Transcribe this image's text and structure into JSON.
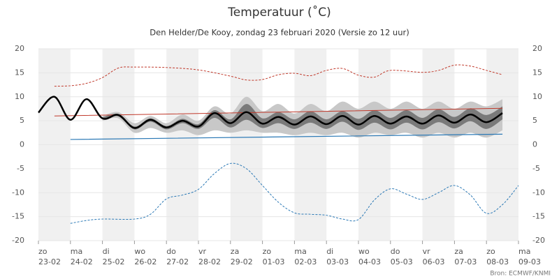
{
  "chart_data": {
    "type": "plume",
    "title": "Temperatuur (˚C)",
    "subtitle": "Den Helder/De Kooy, zondag 23 februari 2020 (Versie zo 12 uur)",
    "source": "Bron: ECMWF/KNMI",
    "xlim": [
      0,
      15
    ],
    "xticks": [
      {
        "value": 0,
        "label": "zo",
        "date": "23-02"
      },
      {
        "value": 1,
        "label": "ma",
        "date": "24-02"
      },
      {
        "value": 2,
        "label": "di",
        "date": "25-02"
      },
      {
        "value": 3,
        "label": "wo",
        "date": "26-02"
      },
      {
        "value": 4,
        "label": "do",
        "date": "27-02"
      },
      {
        "value": 5,
        "label": "vr",
        "date": "28-02"
      },
      {
        "value": 6,
        "label": "za",
        "date": "29-02"
      },
      {
        "value": 7,
        "label": "zo",
        "date": "01-03"
      },
      {
        "value": 8,
        "label": "ma",
        "date": "02-03"
      },
      {
        "value": 9,
        "label": "di",
        "date": "03-03"
      },
      {
        "value": 10,
        "label": "wo",
        "date": "04-03"
      },
      {
        "value": 11,
        "label": "do",
        "date": "05-03"
      },
      {
        "value": 12,
        "label": "vr",
        "date": "06-03"
      },
      {
        "value": 13,
        "label": "za",
        "date": "07-03"
      },
      {
        "value": 14,
        "label": "zo",
        "date": "08-03"
      },
      {
        "value": 15,
        "label": "ma",
        "date": "09-03"
      }
    ],
    "ylim": [
      -20,
      20
    ],
    "yticks": [
      -20,
      -15,
      -10,
      -5,
      0,
      5,
      10,
      15,
      20
    ],
    "grid": true,
    "day_shading": "#f0f0f0",
    "bands": [
      {
        "color": "#c8c8c8",
        "x": [
          2,
          2.5,
          3,
          3.5,
          4,
          4.5,
          5,
          5.5,
          6,
          6.5,
          7,
          7.5,
          8,
          8.5,
          9,
          9.5,
          10,
          10.5,
          11,
          11.5,
          12,
          12.5,
          13,
          13.5,
          14,
          14.5
        ],
        "high": [
          6.0,
          6.8,
          4.5,
          6.0,
          4.5,
          6.3,
          5.0,
          8.0,
          6.5,
          10.0,
          7.0,
          8.5,
          6.5,
          8.5,
          7.0,
          9.0,
          7.5,
          9.0,
          7.5,
          9.0,
          7.5,
          9.0,
          7.5,
          9.0,
          8.0,
          9.5
        ],
        "low": [
          5.0,
          5.5,
          2.5,
          3.5,
          2.5,
          3.0,
          2.0,
          3.0,
          2.5,
          3.0,
          2.5,
          2.5,
          2.0,
          2.5,
          2.0,
          2.5,
          1.5,
          2.5,
          2.0,
          2.5,
          1.5,
          2.5,
          1.5,
          2.5,
          1.5,
          3.0
        ]
      },
      {
        "color": "#7a7a7a",
        "x": [
          2,
          2.5,
          3,
          3.5,
          4,
          4.5,
          5,
          5.5,
          6,
          6.5,
          7,
          7.5,
          8,
          8.5,
          9,
          9.5,
          10,
          10.5,
          11,
          11.5,
          12,
          12.5,
          13,
          13.5,
          14,
          14.5
        ],
        "high": [
          5.7,
          6.4,
          3.8,
          5.5,
          3.9,
          5.4,
          4.3,
          7.2,
          5.3,
          8.5,
          5.5,
          6.8,
          5.3,
          7.0,
          5.3,
          7.0,
          5.4,
          7.2,
          5.6,
          7.2,
          5.6,
          7.4,
          5.8,
          7.6,
          6.2,
          8.0
        ],
        "low": [
          5.3,
          5.9,
          3.2,
          4.8,
          3.2,
          4.5,
          3.3,
          5.6,
          3.6,
          5.2,
          3.5,
          4.5,
          3.3,
          4.6,
          3.3,
          4.8,
          3.1,
          4.6,
          3.2,
          4.6,
          3.2,
          4.7,
          3.4,
          4.9,
          3.3,
          5.3
        ]
      }
    ],
    "series": [
      {
        "color": "#c0392b",
        "dashed": true,
        "width": 1,
        "x": [
          0.5,
          1,
          1.5,
          2,
          2.5,
          3,
          4,
          5,
          6,
          6.5,
          7,
          7.5,
          8,
          8.5,
          9,
          9.5,
          10,
          10.5,
          11,
          12,
          12.5,
          13,
          13.5,
          14,
          14.5
        ],
        "values": [
          12.2,
          12.3,
          12.8,
          14.0,
          16.0,
          16.2,
          16.1,
          15.6,
          14.3,
          13.5,
          13.6,
          14.6,
          14.9,
          14.4,
          15.5,
          15.9,
          14.5,
          14.1,
          15.5,
          15.1,
          15.5,
          16.6,
          16.4,
          15.5,
          14.6
        ]
      },
      {
        "color": "#2a78b5",
        "dashed": true,
        "width": 1,
        "x": [
          1,
          1.5,
          2,
          3,
          3.5,
          4,
          4.5,
          5,
          5.5,
          6,
          6.5,
          7,
          7.5,
          8,
          8.5,
          9,
          9.5,
          10,
          10.5,
          11,
          11.5,
          12,
          12.5,
          13,
          13.5,
          14,
          14.5,
          15
        ],
        "values": [
          -16.4,
          -15.8,
          -15.5,
          -15.5,
          -14.5,
          -11.3,
          -10.5,
          -9.3,
          -6.0,
          -3.9,
          -5.0,
          -8.5,
          -12.0,
          -14.2,
          -14.5,
          -14.7,
          -15.5,
          -15.6,
          -11.5,
          -9.2,
          -10.3,
          -11.4,
          -10.0,
          -8.5,
          -10.5,
          -14.3,
          -12.5,
          -8.5
        ]
      },
      {
        "color": "#c0392b",
        "dashed": false,
        "width": 1,
        "x": [
          0.5,
          14.5
        ],
        "values": [
          6.0,
          7.6
        ]
      },
      {
        "color": "#2a78b5",
        "dashed": false,
        "width": 1.2,
        "x": [
          1,
          14.5
        ],
        "values": [
          1.1,
          2.2
        ]
      },
      {
        "color": "#000000",
        "dashed": false,
        "width": 2.5,
        "x": [
          0,
          0.5,
          1,
          1.5,
          2,
          2.5,
          3,
          3.5,
          4,
          4.5,
          5,
          5.5,
          6,
          6.5,
          7,
          7.5,
          8,
          8.5,
          9,
          9.5,
          10,
          10.5,
          11,
          11.5,
          12,
          12.5,
          13,
          13.5,
          14,
          14.5
        ],
        "values": [
          6.7,
          10.0,
          5.2,
          9.5,
          5.5,
          6.2,
          3.5,
          5.2,
          3.6,
          5.0,
          3.8,
          6.6,
          4.5,
          6.8,
          4.4,
          5.8,
          4.2,
          5.9,
          4.3,
          6.0,
          4.2,
          6.0,
          4.4,
          5.9,
          4.4,
          6.1,
          4.6,
          6.3,
          4.7,
          6.6
        ]
      }
    ]
  }
}
